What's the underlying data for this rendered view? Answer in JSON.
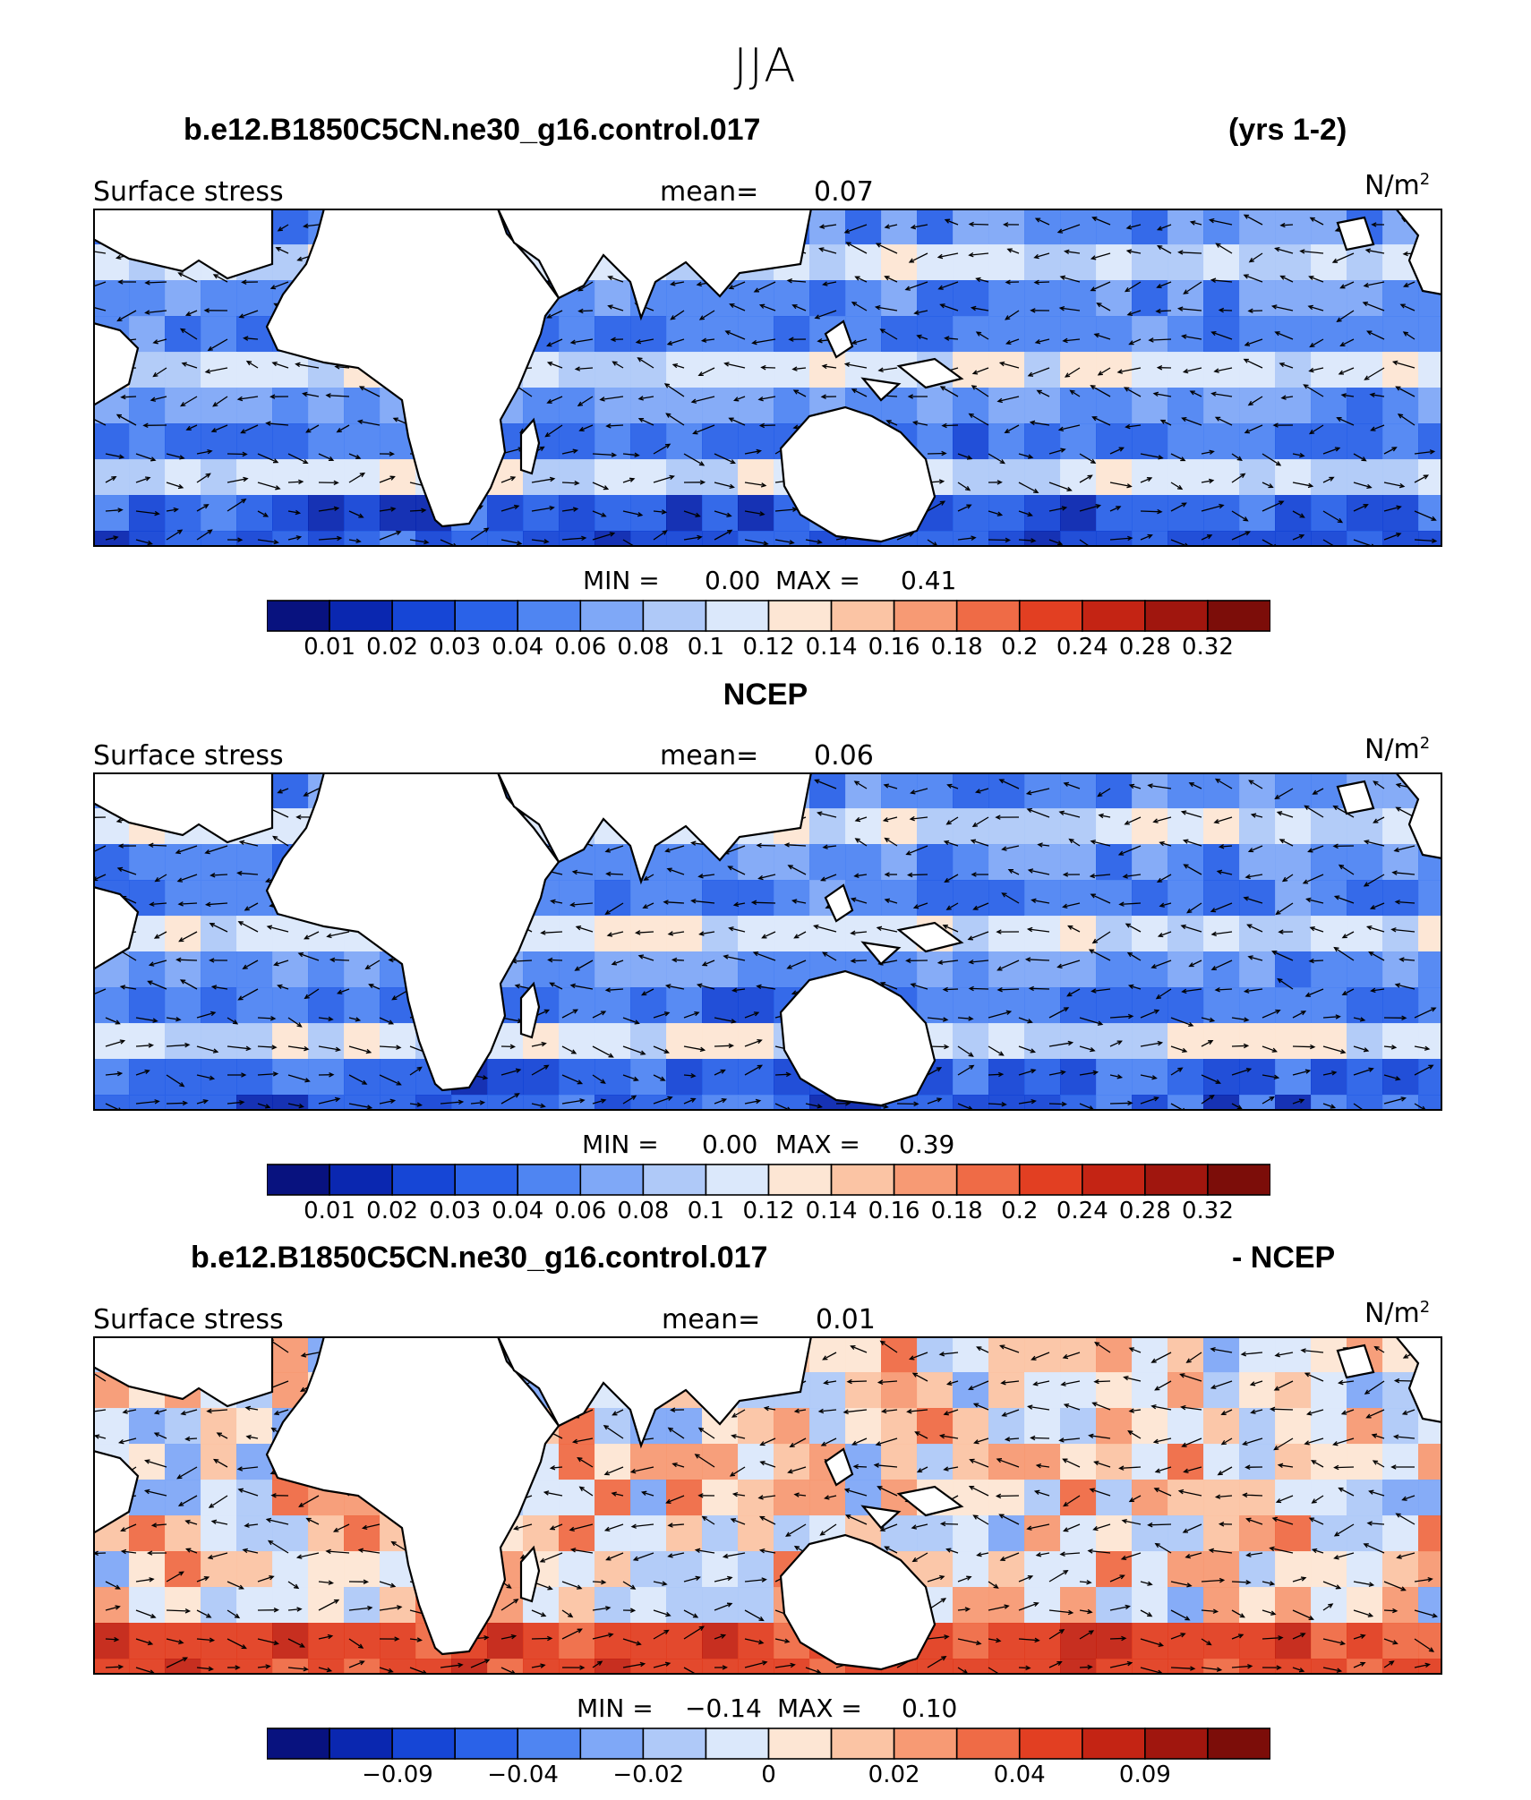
{
  "season": "JJA",
  "colors": {
    "seq16": [
      "#08127f",
      "#0a27b0",
      "#1646d6",
      "#2a62e8",
      "#4f85f2",
      "#7fa8f7",
      "#afc9f8",
      "#dbe8fb",
      "#fde6d4",
      "#fbc4a4",
      "#f79a74",
      "#ef6b46",
      "#e23f22",
      "#c42414",
      "#a0160e",
      "#7c0d09"
    ]
  },
  "panels": [
    {
      "id": "model",
      "title_left": "b.e12.B1850C5CN.ne30_g16.control.017",
      "title_right": "(yrs 1-2)",
      "field": "Surface stress",
      "mean_label": "mean=",
      "mean_value": "0.07",
      "units": "N/m",
      "units_sup": "2",
      "min_label": "MIN =",
      "min_value": "0.00",
      "max_label": "MAX =",
      "max_value": "0.41",
      "ticks": [
        "0.01",
        "0.02",
        "0.03",
        "0.04",
        "0.06",
        "0.08",
        "0.1",
        "0.12",
        "0.14",
        "0.16",
        "0.18",
        "0.2",
        "0.24",
        "0.28",
        "0.32"
      ]
    },
    {
      "id": "obs",
      "title_left": "NCEP",
      "title_right": "",
      "field": "Surface stress",
      "mean_label": "mean=",
      "mean_value": "0.06",
      "units": "N/m",
      "units_sup": "2",
      "min_label": "MIN =",
      "min_value": "0.00",
      "max_label": "MAX =",
      "max_value": "0.39",
      "ticks": [
        "0.01",
        "0.02",
        "0.03",
        "0.04",
        "0.06",
        "0.08",
        "0.1",
        "0.12",
        "0.14",
        "0.16",
        "0.18",
        "0.2",
        "0.24",
        "0.28",
        "0.32"
      ]
    },
    {
      "id": "diff",
      "title_left": "b.e12.B1850C5CN.ne30_g16.control.017",
      "title_right": "- NCEP",
      "field": "Surface stress",
      "mean_label": "mean=",
      "mean_value": "0.01",
      "units": "N/m",
      "units_sup": "2",
      "min_label": "MIN =",
      "min_value": "−0.14",
      "max_label": "MAX =",
      "max_value": "0.10",
      "ticks": [
        "−0.09",
        "−0.04",
        "−0.02",
        "0",
        "0.02",
        "0.04",
        "0.09"
      ]
    }
  ]
}
